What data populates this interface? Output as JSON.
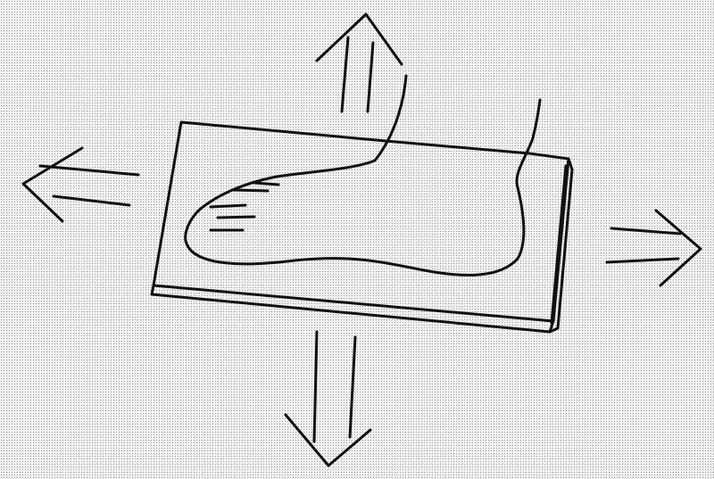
{
  "diagram": {
    "ink_color": "#111111",
    "background_color": "#f2f2f2",
    "elements": [
      {
        "name": "foot-outline",
        "type": "line-drawing"
      },
      {
        "name": "platform-plate",
        "type": "line-drawing"
      },
      {
        "name": "up-arrow",
        "direction": "up"
      },
      {
        "name": "down-arrow",
        "direction": "down"
      },
      {
        "name": "left-arrow",
        "direction": "left"
      },
      {
        "name": "right-arrow",
        "direction": "right"
      }
    ]
  }
}
